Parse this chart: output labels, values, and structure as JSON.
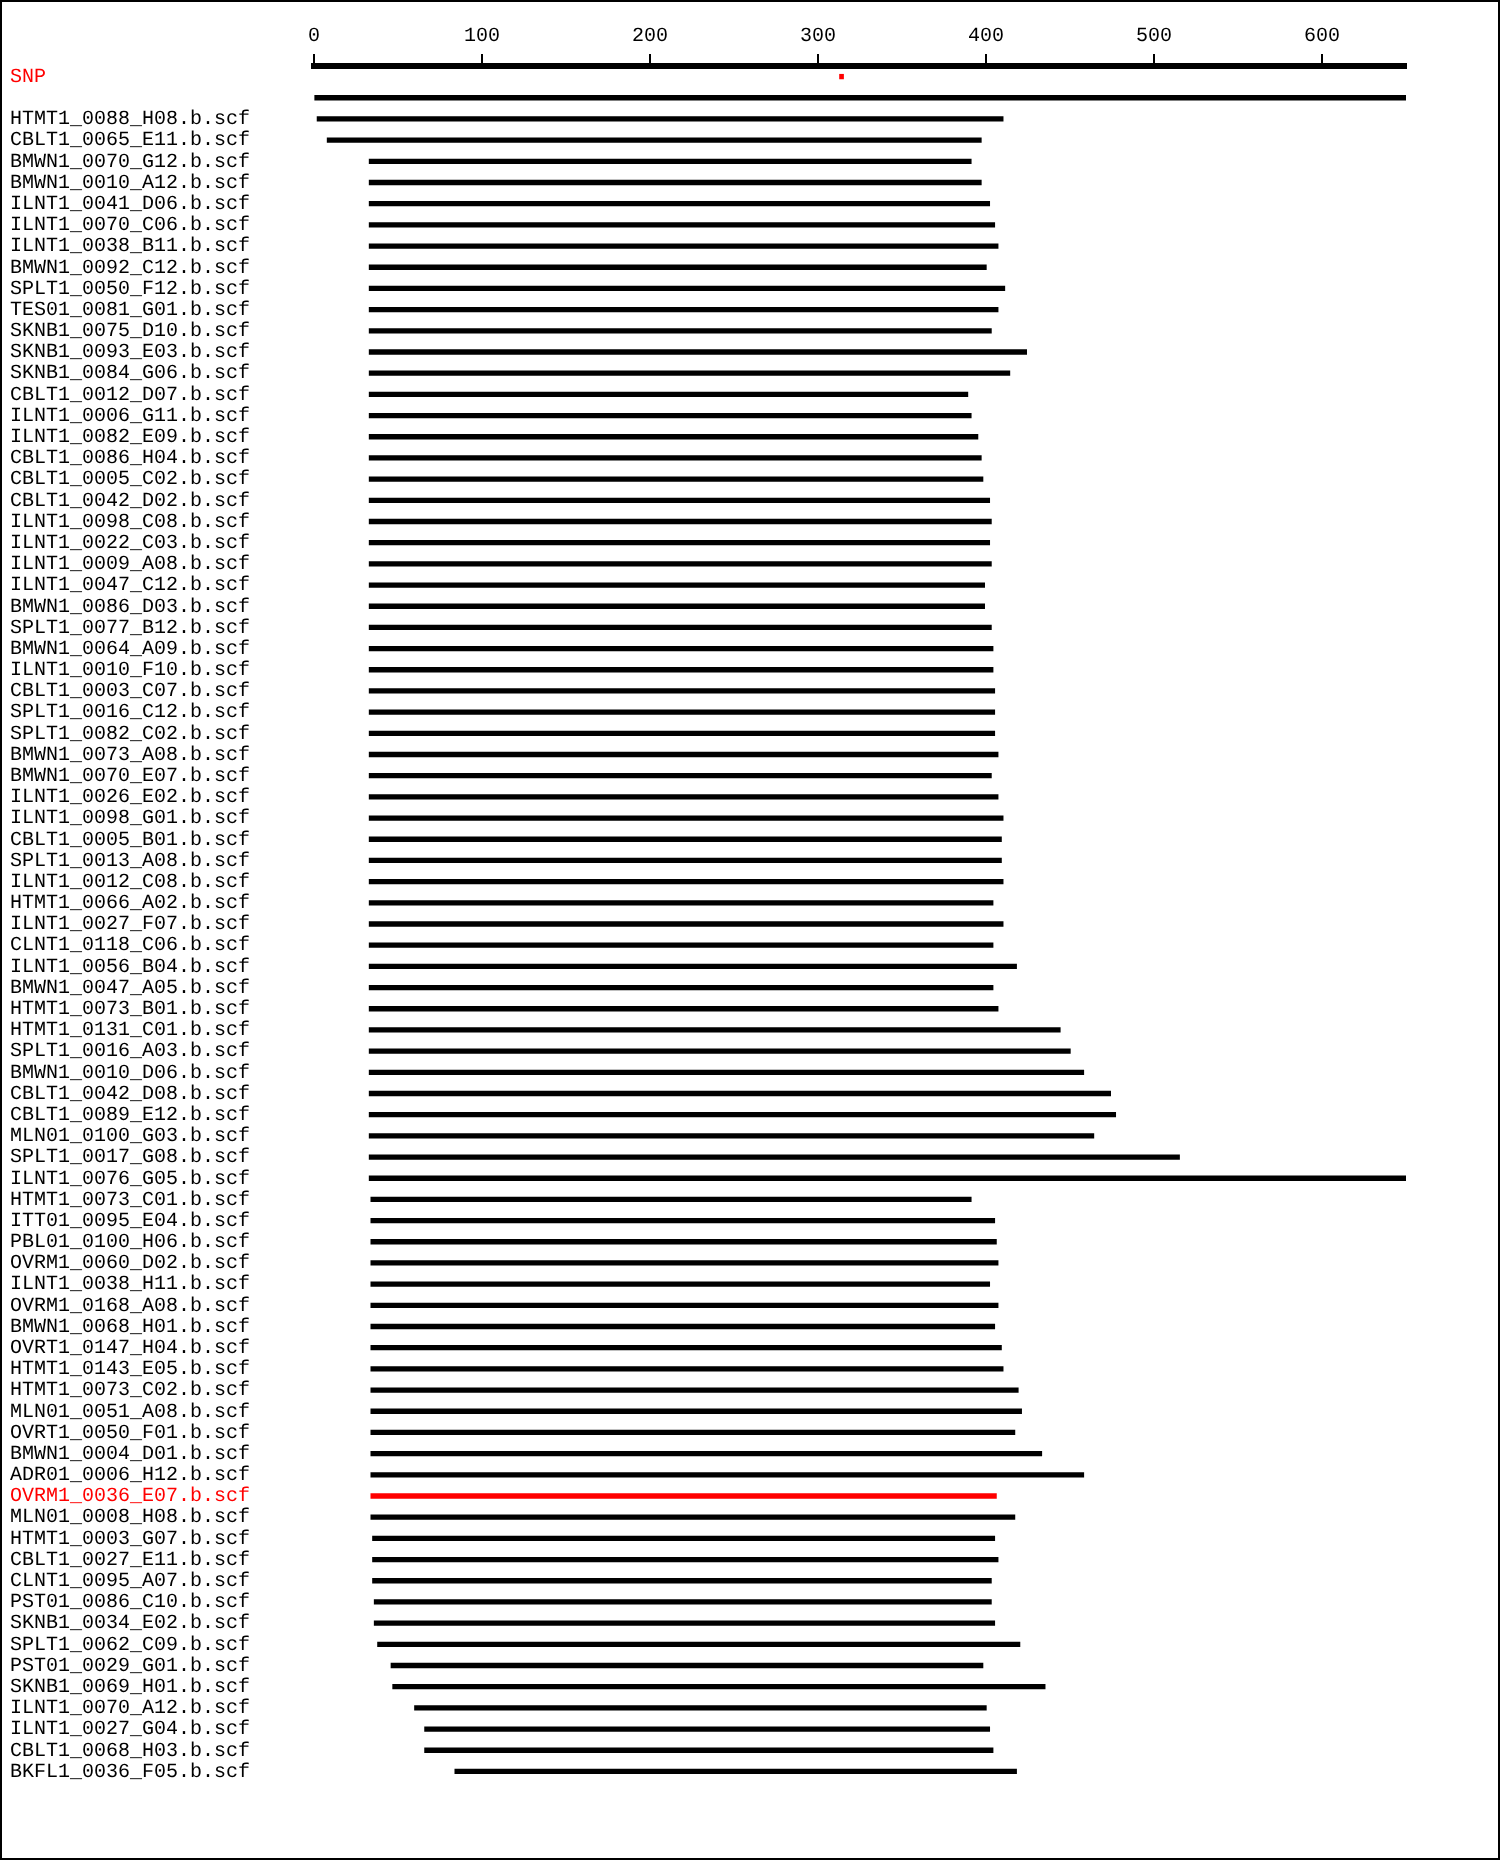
{
  "chart_data": {
    "type": "bar",
    "orientation": "horizontal",
    "categories": [
      "SNP",
      null,
      "HTMT1_0088_H08.b.scf",
      "CBLT1_0065_E11.b.scf",
      "BMWN1_0070_G12.b.scf",
      "BMWN1_0010_A12.b.scf",
      "ILNT1_0041_D06.b.scf",
      "ILNT1_0070_C06.b.scf",
      "ILNT1_0038_B11.b.scf",
      "BMWN1_0092_C12.b.scf",
      "SPLT1_0050_F12.b.scf",
      "TES01_0081_G01.b.scf",
      "SKNB1_0075_D10.b.scf",
      "SKNB1_0093_E03.b.scf",
      "SKNB1_0084_G06.b.scf",
      "CBLT1_0012_D07.b.scf",
      "ILNT1_0006_G11.b.scf",
      "ILNT1_0082_E09.b.scf",
      "CBLT1_0086_H04.b.scf",
      "CBLT1_0005_C02.b.scf",
      "CBLT1_0042_D02.b.scf",
      "ILNT1_0098_C08.b.scf",
      "ILNT1_0022_C03.b.scf",
      "ILNT1_0009_A08.b.scf",
      "ILNT1_0047_C12.b.scf",
      "BMWN1_0086_D03.b.scf",
      "SPLT1_0077_B12.b.scf",
      "BMWN1_0064_A09.b.scf",
      "ILNT1_0010_F10.b.scf",
      "CBLT1_0003_C07.b.scf",
      "SPLT1_0016_C12.b.scf",
      "SPLT1_0082_C02.b.scf",
      "BMWN1_0073_A08.b.scf",
      "BMWN1_0070_E07.b.scf",
      "ILNT1_0026_E02.b.scf",
      "ILNT1_0098_G01.b.scf",
      "CBLT1_0005_B01.b.scf",
      "SPLT1_0013_A08.b.scf",
      "ILNT1_0012_C08.b.scf",
      "HTMT1_0066_A02.b.scf",
      "ILNT1_0027_F07.b.scf",
      "CLNT1_0118_C06.b.scf",
      "ILNT1_0056_B04.b.scf",
      "BMWN1_0047_A05.b.scf",
      "HTMT1_0073_B01.b.scf",
      "HTMT1_0131_C01.b.scf",
      "SPLT1_0016_A03.b.scf",
      "BMWN1_0010_D06.b.scf",
      "CBLT1_0042_D08.b.scf",
      "CBLT1_0089_E12.b.scf",
      "MLN01_0100_G03.b.scf",
      "SPLT1_0017_G08.b.scf",
      "ILNT1_0076_G05.b.scf",
      "HTMT1_0073_C01.b.scf",
      "ITT01_0095_E04.b.scf",
      "PBL01_0100_H06.b.scf",
      "OVRM1_0060_D02.b.scf",
      "ILNT1_0038_H11.b.scf",
      "OVRM1_0168_A08.b.scf",
      "BMWN1_0068_H01.b.scf",
      "OVRT1_0147_H04.b.scf",
      "HTMT1_0143_E05.b.scf",
      "HTMT1_0073_C02.b.scf",
      "MLN01_0051_A08.b.scf",
      "OVRT1_0050_F01.b.scf",
      "BMWN1_0004_D01.b.scf",
      "ADR01_0006_H12.b.scf",
      "OVRM1_0036_E07.b.scf",
      "MLN01_0008_H08.b.scf",
      "HTMT1_0003_G07.b.scf",
      "CBLT1_0027_E11.b.scf",
      "CLNT1_0095_A07.b.scf",
      "PST01_0086_C10.b.scf",
      "SKNB1_0034_E02.b.scf",
      "SPLT1_0062_C09.b.scf",
      "PST01_0029_G01.b.scf",
      "SKNB1_0069_H01.b.scf",
      "ILNT1_0070_A12.b.scf",
      "ILNT1_0027_G04.b.scf",
      "CBLT1_0068_H03.b.scf",
      "BKFL1_0036_F05.b.scf"
    ],
    "base": [
      313,
      0,
      2,
      8,
      33,
      33,
      33,
      33,
      33,
      33,
      33,
      33,
      33,
      33,
      33,
      33,
      33,
      33,
      33,
      33,
      33,
      33,
      33,
      33,
      33,
      33,
      33,
      33,
      33,
      33,
      33,
      33,
      33,
      33,
      33,
      33,
      33,
      33,
      33,
      33,
      33,
      33,
      33,
      33,
      33,
      33,
      33,
      33,
      33,
      33,
      33,
      33,
      33,
      34,
      34,
      34,
      34,
      34,
      34,
      34,
      34,
      34,
      34,
      34,
      34,
      34,
      34,
      34,
      34,
      35,
      35,
      35,
      36,
      36,
      38,
      46,
      47,
      60,
      66,
      66,
      84
    ],
    "values": [
      2,
      650,
      408,
      389,
      358,
      364,
      369,
      372,
      374,
      367,
      378,
      374,
      370,
      391,
      381,
      356,
      358,
      362,
      364,
      365,
      369,
      370,
      369,
      370,
      366,
      366,
      370,
      371,
      371,
      372,
      372,
      372,
      374,
      370,
      374,
      377,
      376,
      376,
      377,
      371,
      377,
      371,
      385,
      371,
      374,
      411,
      417,
      425,
      441,
      444,
      431,
      482,
      617,
      357,
      371,
      372,
      373,
      368,
      373,
      371,
      375,
      376,
      385,
      387,
      383,
      399,
      424,
      372,
      383,
      370,
      372,
      368,
      367,
      369,
      382,
      352,
      388,
      340,
      336,
      338,
      334
    ],
    "colors": [
      "#ff0000",
      "#000000",
      "#000000",
      "#000000",
      "#000000",
      "#000000",
      "#000000",
      "#000000",
      "#000000",
      "#000000",
      "#000000",
      "#000000",
      "#000000",
      "#000000",
      "#000000",
      "#000000",
      "#000000",
      "#000000",
      "#000000",
      "#000000",
      "#000000",
      "#000000",
      "#000000",
      "#000000",
      "#000000",
      "#000000",
      "#000000",
      "#000000",
      "#000000",
      "#000000",
      "#000000",
      "#000000",
      "#000000",
      "#000000",
      "#000000",
      "#000000",
      "#000000",
      "#000000",
      "#000000",
      "#000000",
      "#000000",
      "#000000",
      "#000000",
      "#000000",
      "#000000",
      "#000000",
      "#000000",
      "#000000",
      "#000000",
      "#000000",
      "#000000",
      "#000000",
      "#000000",
      "#000000",
      "#000000",
      "#000000",
      "#000000",
      "#000000",
      "#000000",
      "#000000",
      "#000000",
      "#000000",
      "#000000",
      "#000000",
      "#000000",
      "#000000",
      "#000000",
      "#ff0000",
      "#000000",
      "#000000",
      "#000000",
      "#000000",
      "#000000",
      "#000000",
      "#000000",
      "#000000",
      "#000000",
      "#000000",
      "#000000",
      "#000000",
      "#000000"
    ],
    "xlim": [
      0,
      650
    ],
    "xticks": [
      0,
      100,
      200,
      300,
      400,
      500,
      600
    ],
    "grid": false
  }
}
